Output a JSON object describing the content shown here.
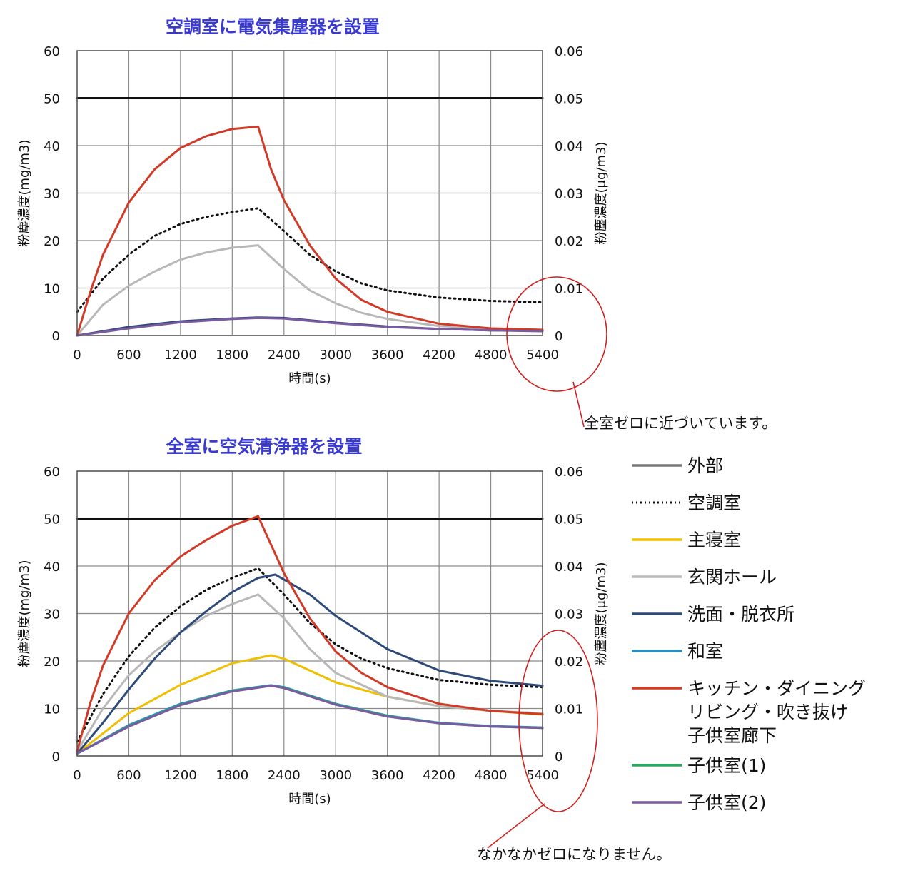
{
  "chart_data": [
    {
      "type": "line",
      "title": "空調室に電気集塵器を設置",
      "xlabel": "時間(s)",
      "ylabel": "粉塵濃度(mg/m3)",
      "y2label": "粉塵濃度(μg/m3)",
      "xlim": [
        0,
        5400
      ],
      "ylim": [
        0,
        60
      ],
      "y2lim": [
        0,
        0.06
      ],
      "x_ticks": [
        "0",
        "600",
        "1200",
        "1800",
        "2400",
        "3000",
        "3600",
        "4200",
        "4800",
        "5400"
      ],
      "y_ticks": [
        "0",
        "10",
        "20",
        "30",
        "40",
        "50",
        "60"
      ],
      "y2_ticks": [
        "0",
        "0.01",
        "0.02",
        "0.03",
        "0.04",
        "0.05",
        "0.06"
      ],
      "grid": true,
      "annotation": "全室ゼロに近づいています。",
      "series": [
        {
          "name": "外部",
          "color": "#111111",
          "style": "solid",
          "x": [
            0,
            5400
          ],
          "y": [
            50,
            50
          ]
        },
        {
          "name": "空調室",
          "color": "#111111",
          "style": "dotted",
          "x": [
            0,
            300,
            600,
            900,
            1200,
            1500,
            1800,
            2100,
            2400,
            2700,
            3000,
            3300,
            3600,
            4200,
            4800,
            5400
          ],
          "y": [
            5,
            12,
            17,
            21,
            23.5,
            25,
            26,
            26.8,
            22,
            17,
            13.5,
            11,
            9.5,
            8,
            7.3,
            7
          ]
        },
        {
          "name": "玄関ホール",
          "color": "#b8b8b8",
          "style": "solid",
          "x": [
            0,
            300,
            600,
            900,
            1200,
            1500,
            1800,
            2100,
            2400,
            2700,
            3000,
            3300,
            3600,
            4200,
            4800,
            5400
          ],
          "y": [
            0,
            6.5,
            10.5,
            13.5,
            16,
            17.5,
            18.5,
            19,
            14,
            9.5,
            6.8,
            4.8,
            3.5,
            2,
            1.5,
            1.2
          ]
        },
        {
          "name": "洗面・脱衣所",
          "color": "#2e4a78",
          "style": "solid",
          "x": [
            0,
            600,
            1200,
            1800,
            2100,
            2400,
            3000,
            3600,
            4200,
            4800,
            5400
          ],
          "y": [
            0,
            1.8,
            3,
            3.6,
            3.8,
            3.7,
            2.7,
            1.9,
            1.4,
            1.1,
            1
          ]
        },
        {
          "name": "キッチン・ダイニング リビング・吹き抜け 子供室廊下",
          "color": "#d23a28",
          "style": "solid",
          "x": [
            0,
            150,
            300,
            600,
            900,
            1200,
            1500,
            1800,
            2100,
            2250,
            2400,
            2700,
            3000,
            3300,
            3600,
            4200,
            4800,
            5400
          ],
          "y": [
            0,
            9,
            17,
            28,
            35,
            39.5,
            42,
            43.5,
            44,
            35,
            28.5,
            19,
            12,
            7.5,
            5,
            2.5,
            1.5,
            1.2
          ]
        },
        {
          "name": "子供室(2)",
          "color": "#7a5aa0",
          "style": "solid",
          "x": [
            0,
            600,
            1200,
            1800,
            2100,
            2400,
            3000,
            3600,
            4200,
            4800,
            5400
          ],
          "y": [
            0,
            1.5,
            2.8,
            3.5,
            3.7,
            3.6,
            2.6,
            1.8,
            1.4,
            1.1,
            0.9
          ]
        }
      ]
    },
    {
      "type": "line",
      "title": "全室に空気清浄器を設置",
      "xlabel": "時間(s)",
      "ylabel": "粉塵濃度(mg/m3)",
      "y2label": "粉塵濃度(μg/m3)",
      "xlim": [
        0,
        5400
      ],
      "ylim": [
        0,
        60
      ],
      "y2lim": [
        0,
        0.06
      ],
      "x_ticks": [
        "0",
        "600",
        "1200",
        "1800",
        "2400",
        "3000",
        "3600",
        "4200",
        "4800",
        "5400"
      ],
      "y_ticks": [
        "0",
        "10",
        "20",
        "30",
        "40",
        "50",
        "60"
      ],
      "y2_ticks": [
        "0",
        "0.01",
        "0.02",
        "0.03",
        "0.04",
        "0.05",
        "0.06"
      ],
      "grid": true,
      "annotation": "なかなかゼロになりません。",
      "series": [
        {
          "name": "外部",
          "color": "#111111",
          "style": "solid",
          "x": [
            0,
            5400
          ],
          "y": [
            50,
            50
          ]
        },
        {
          "name": "空調室",
          "color": "#111111",
          "style": "dotted",
          "x": [
            0,
            300,
            600,
            900,
            1200,
            1500,
            1800,
            2100,
            2400,
            2700,
            3000,
            3300,
            3600,
            4200,
            4800,
            5400
          ],
          "y": [
            3,
            13,
            21,
            27,
            31.5,
            35,
            37.5,
            39.5,
            34,
            28,
            23.5,
            20.5,
            18.5,
            16,
            15,
            14.5
          ]
        },
        {
          "name": "主寝室",
          "color": "#f0c000",
          "style": "solid",
          "x": [
            0,
            600,
            1200,
            1800,
            2250,
            2400,
            3000,
            3600,
            4200,
            4800,
            5400
          ],
          "y": [
            0.5,
            9,
            15,
            19.5,
            21.2,
            20.5,
            15.5,
            12.5,
            10.5,
            9.5,
            8.7
          ]
        },
        {
          "name": "玄関ホール",
          "color": "#b8b8b8",
          "style": "solid",
          "x": [
            0,
            300,
            600,
            900,
            1200,
            1500,
            1800,
            2100,
            2400,
            2700,
            3000,
            3600,
            4200,
            4800,
            5400
          ],
          "y": [
            1,
            10,
            17,
            22,
            26,
            29.5,
            32,
            34,
            29,
            22.5,
            17.5,
            12.5,
            10.5,
            9.5,
            9
          ]
        },
        {
          "name": "洗面・脱衣所",
          "color": "#2e4a78",
          "style": "solid",
          "x": [
            0,
            300,
            600,
            900,
            1200,
            1500,
            1800,
            2100,
            2300,
            2700,
            3000,
            3600,
            4200,
            4800,
            5400
          ],
          "y": [
            0.5,
            7,
            14,
            20.5,
            26,
            30.5,
            34.5,
            37.5,
            38.2,
            34,
            29.5,
            22.5,
            18,
            15.8,
            14.8
          ]
        },
        {
          "name": "和室",
          "color": "#2890c0",
          "style": "solid",
          "x": [
            0,
            600,
            1200,
            1800,
            2250,
            2400,
            3000,
            3600,
            4200,
            4800,
            5400
          ],
          "y": [
            0.5,
            6.5,
            11,
            13.8,
            14.9,
            14.5,
            11,
            8.5,
            7,
            6.3,
            6
          ]
        },
        {
          "name": "キッチン・ダイニング リビング・吹き抜け 子供室廊下",
          "color": "#d23a28",
          "style": "solid",
          "x": [
            0,
            150,
            300,
            600,
            900,
            1200,
            1500,
            1800,
            2100,
            2250,
            2400,
            2700,
            3000,
            3300,
            3600,
            4200,
            4800,
            5400
          ],
          "y": [
            1,
            11,
            19,
            30,
            37,
            42,
            45.5,
            48.5,
            50.5,
            44.5,
            38.5,
            29,
            22,
            17.5,
            14.5,
            11,
            9.5,
            8.8
          ]
        },
        {
          "name": "子供室(1)",
          "color": "#2aa860",
          "style": "solid",
          "x": [
            0,
            600,
            1200,
            1800,
            2250,
            2400,
            3000,
            3600,
            4200,
            4800,
            5400
          ],
          "y": [
            0.5,
            6.3,
            10.8,
            13.7,
            14.8,
            14.4,
            10.9,
            8.4,
            6.9,
            6.2,
            5.9
          ]
        },
        {
          "name": "子供室(2)",
          "color": "#7a5aa0",
          "style": "solid",
          "x": [
            0,
            600,
            1200,
            1800,
            2250,
            2400,
            3000,
            3600,
            4200,
            4800,
            5400
          ],
          "y": [
            0.5,
            6.2,
            10.7,
            13.6,
            14.8,
            14.3,
            10.8,
            8.3,
            6.9,
            6.2,
            5.9
          ]
        }
      ]
    }
  ],
  "legend": [
    {
      "lines": [
        "外部"
      ],
      "color": "#777777",
      "style": "solid"
    },
    {
      "lines": [
        "空調室"
      ],
      "color": "#111111",
      "style": "dotted"
    },
    {
      "lines": [
        "主寝室"
      ],
      "color": "#f0c000",
      "style": "solid"
    },
    {
      "lines": [
        "玄関ホール"
      ],
      "color": "#b8b8b8",
      "style": "solid"
    },
    {
      "lines": [
        "洗面・脱衣所"
      ],
      "color": "#2e4a78",
      "style": "solid"
    },
    {
      "lines": [
        "和室"
      ],
      "color": "#2890c0",
      "style": "solid"
    },
    {
      "lines": [
        "キッチン・ダイニング",
        "リビング・吹き抜け",
        "子供室廊下"
      ],
      "color": "#d23a28",
      "style": "solid"
    },
    {
      "lines": [
        "子供室(1)"
      ],
      "color": "#2aa860",
      "style": "solid"
    },
    {
      "lines": [
        "子供室(2)"
      ],
      "color": "#7a5aa0",
      "style": "solid"
    }
  ]
}
